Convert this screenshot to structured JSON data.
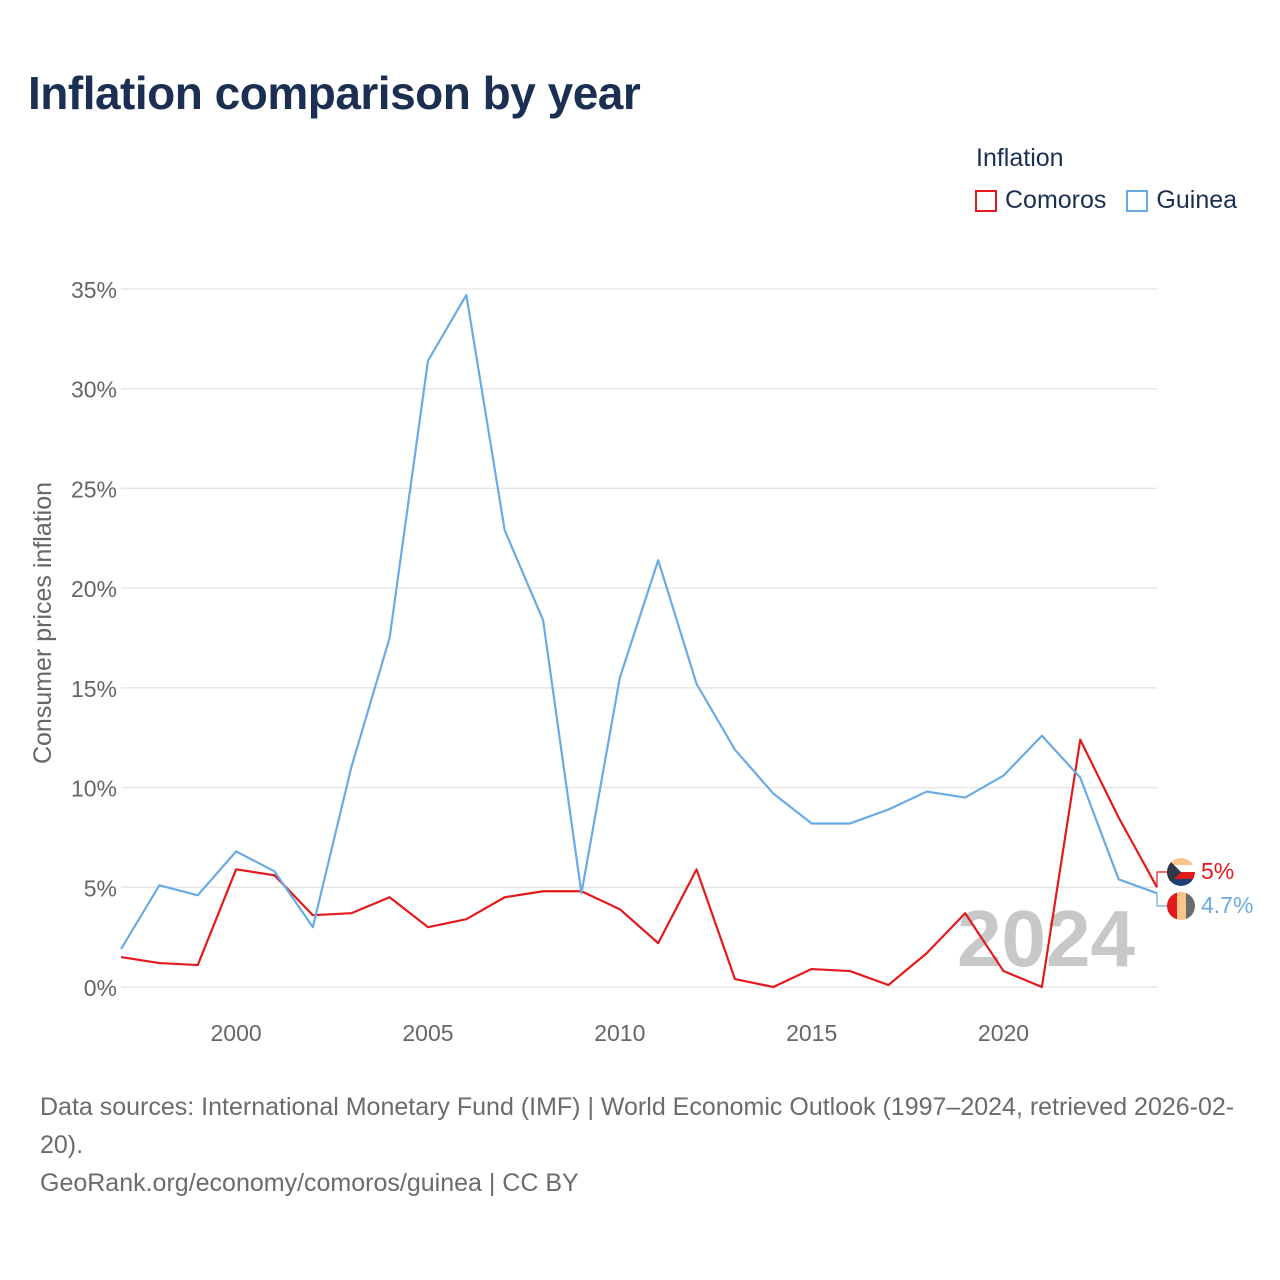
{
  "title": "Inflation comparison by year",
  "legend": {
    "title": "Inflation",
    "items": [
      {
        "label": "Comoros",
        "color": "#e31a1c"
      },
      {
        "label": "Guinea",
        "color": "#6aabe3"
      }
    ]
  },
  "watermark_year": "2024",
  "end_labels": {
    "comoros": "5%",
    "guinea": "4.7%"
  },
  "footer": {
    "sources": "Data sources: International Monetary Fund (IMF) | World Economic Outlook (1997–2024, retrieved 2026-02-20).",
    "credit": "GeoRank.org/economy/comoros/guinea | CC BY"
  },
  "chart_data": {
    "type": "line",
    "title": "Inflation comparison by year",
    "xlabel": "",
    "ylabel": "Consumer prices inflation",
    "xlim": [
      1997,
      2024
    ],
    "ylim": [
      0,
      35
    ],
    "x_ticks": [
      2000,
      2005,
      2010,
      2015,
      2020
    ],
    "y_ticks": [
      0,
      5,
      10,
      15,
      20,
      25,
      30,
      35
    ],
    "y_tick_labels": [
      "0%",
      "5%",
      "10%",
      "15%",
      "20%",
      "25%",
      "30%",
      "35%"
    ],
    "grid": true,
    "legend_position": "top-right",
    "x": [
      1997,
      1998,
      1999,
      2000,
      2001,
      2002,
      2003,
      2004,
      2005,
      2006,
      2007,
      2008,
      2009,
      2010,
      2011,
      2012,
      2013,
      2014,
      2015,
      2016,
      2017,
      2018,
      2019,
      2020,
      2021,
      2022,
      2023,
      2024
    ],
    "series": [
      {
        "name": "Comoros",
        "color": "#e31a1c",
        "values": [
          1.5,
          1.2,
          1.1,
          5.9,
          5.6,
          3.6,
          3.7,
          4.5,
          3.0,
          3.4,
          4.5,
          4.8,
          4.8,
          3.9,
          2.2,
          5.9,
          0.4,
          0.0,
          0.9,
          0.8,
          0.1,
          1.7,
          3.7,
          0.8,
          0.0,
          12.4,
          8.5,
          5.0
        ]
      },
      {
        "name": "Guinea",
        "color": "#6aabe3",
        "values": [
          1.9,
          5.1,
          4.6,
          6.8,
          5.8,
          3.0,
          11.0,
          17.5,
          31.4,
          34.7,
          22.9,
          18.4,
          4.7,
          15.5,
          21.4,
          15.2,
          11.9,
          9.7,
          8.2,
          8.2,
          8.9,
          9.8,
          9.5,
          10.6,
          12.6,
          10.5,
          5.4,
          4.7
        ]
      }
    ]
  }
}
